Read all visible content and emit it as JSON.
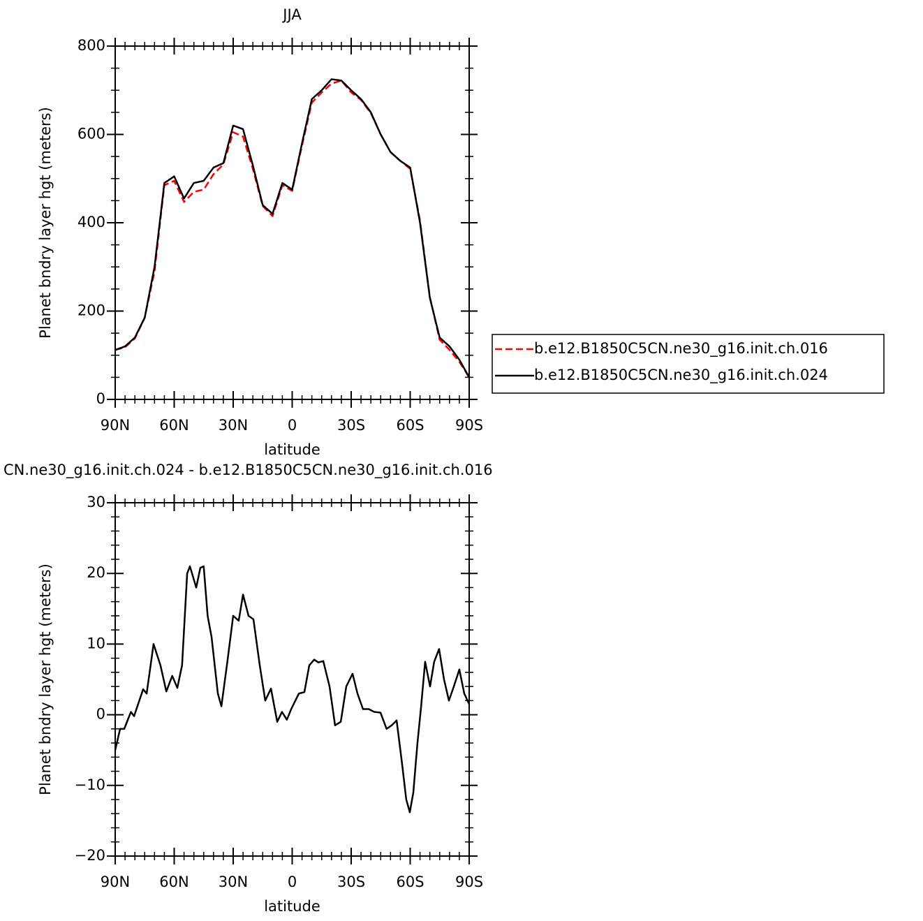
{
  "chart_data": [
    {
      "type": "line",
      "title": "JJA",
      "x_label": "latitude",
      "y_label": "Planet bndry layer hgt (meters)",
      "x": [
        90,
        85,
        80,
        75,
        70,
        65,
        60,
        55,
        50,
        45,
        40,
        35,
        30,
        25,
        20,
        15,
        10,
        5,
        0,
        -5,
        -10,
        -15,
        -20,
        -25,
        -30,
        -35,
        -40,
        -45,
        -50,
        -55,
        -60,
        -65,
        -70,
        -75,
        -80,
        -85,
        -90
      ],
      "series": [
        {
          "name": "b.e12.B1850C5CN.ne30_g16.init.ch.016",
          "color": "#ff0000",
          "dashed": true,
          "values": [
            112,
            118,
            138,
            185,
            290,
            485,
            495,
            447,
            470,
            475,
            510,
            532,
            605,
            595,
            522,
            438,
            415,
            485,
            472,
            575,
            672,
            695,
            715,
            722,
            695,
            678,
            648,
            600,
            560,
            540,
            522,
            405,
            232,
            135,
            112,
            85,
            50
          ]
        },
        {
          "name": "b.e12.B1850C5CN.ne30_g16.init.ch.024",
          "color": "#000000",
          "dashed": false,
          "values": [
            112,
            120,
            140,
            185,
            300,
            490,
            505,
            455,
            490,
            495,
            525,
            535,
            620,
            612,
            530,
            440,
            420,
            490,
            475,
            580,
            680,
            700,
            725,
            722,
            700,
            680,
            650,
            600,
            560,
            540,
            525,
            400,
            230,
            140,
            120,
            90,
            50
          ]
        }
      ],
      "xlim": [
        90,
        -90
      ],
      "ylim": [
        0,
        800
      ],
      "xticks": [
        {
          "value": 90,
          "label": "90N"
        },
        {
          "value": 60,
          "label": "60N"
        },
        {
          "value": 30,
          "label": "30N"
        },
        0,
        {
          "value": -30,
          "label": "30S"
        },
        {
          "value": -60,
          "label": "60S"
        },
        {
          "value": -90,
          "label": "90S"
        }
      ],
      "yticks": [
        0,
        200,
        400,
        600,
        800
      ],
      "legend": "right"
    },
    {
      "type": "line",
      "title": "CN.ne30_g16.init.ch.024 - b.e12.B1850C5CN.ne30_g16.init.ch.016",
      "x_label": "latitude",
      "y_label": "Planet bndry layer hgt (meters)",
      "x": [
        90,
        87.5,
        85.4,
        82,
        80.4,
        75.8,
        74,
        70.5,
        67,
        64,
        61,
        58.4,
        56,
        53.4,
        52,
        48.8,
        46.7,
        45,
        43,
        41,
        37.8,
        36,
        33.2,
        30,
        27.2,
        25,
        22.2,
        19.7,
        16.5,
        13.7,
        10.8,
        7.6,
        5.2,
        2.7,
        0.5,
        -3.4,
        -6.2,
        -8.7,
        -11.2,
        -13.3,
        -15.8,
        -19,
        -21.8,
        -24.7,
        -27.5,
        -30.7,
        -33.2,
        -36,
        -38.9,
        -41.7,
        -44.9,
        -48,
        -50.6,
        -53.1,
        -55.9,
        -58,
        -59.8,
        -61.6,
        -63.7,
        -65.5,
        -67.6,
        -70.1,
        -72.2,
        -74.7,
        -77.2,
        -79.7,
        -82.2,
        -85,
        -87.5,
        -90
      ],
      "series": [
        {
          "color": "#000000",
          "dashed": false,
          "values": [
            -5,
            -2,
            -2,
            0.4,
            -0.2,
            3.6,
            3,
            10,
            7,
            3.3,
            5.5,
            3.8,
            7,
            20,
            21,
            18,
            20.8,
            21,
            14,
            11,
            3,
            1.2,
            7,
            14,
            13.3,
            17,
            14,
            13.5,
            7,
            2,
            3.7,
            -1,
            0.4,
            -0.7,
            0.8,
            3,
            3.2,
            7,
            7.8,
            7.4,
            7.6,
            4,
            -1.5,
            -1,
            4,
            5.8,
            3,
            0.8,
            0.8,
            0.4,
            0.3,
            -2,
            -1.5,
            -0.8,
            -7,
            -12,
            -13.8,
            -11,
            -4,
            1,
            7.5,
            4,
            7.5,
            9.3,
            5,
            2,
            4,
            6.4,
            3,
            1.5
          ]
        }
      ],
      "xlim": [
        90,
        -90
      ],
      "ylim": [
        -20,
        30
      ],
      "xticks": [
        {
          "value": 90,
          "label": "90N"
        },
        {
          "value": 60,
          "label": "60N"
        },
        {
          "value": 30,
          "label": "30N"
        },
        0,
        {
          "value": -30,
          "label": "30S"
        },
        {
          "value": -60,
          "label": "60S"
        },
        {
          "value": -90,
          "label": "90S"
        }
      ],
      "yticks": [
        {
          "value": -20,
          "label": "−20"
        },
        {
          "value": -10,
          "label": "−10"
        },
        0,
        10,
        20,
        30
      ]
    }
  ]
}
